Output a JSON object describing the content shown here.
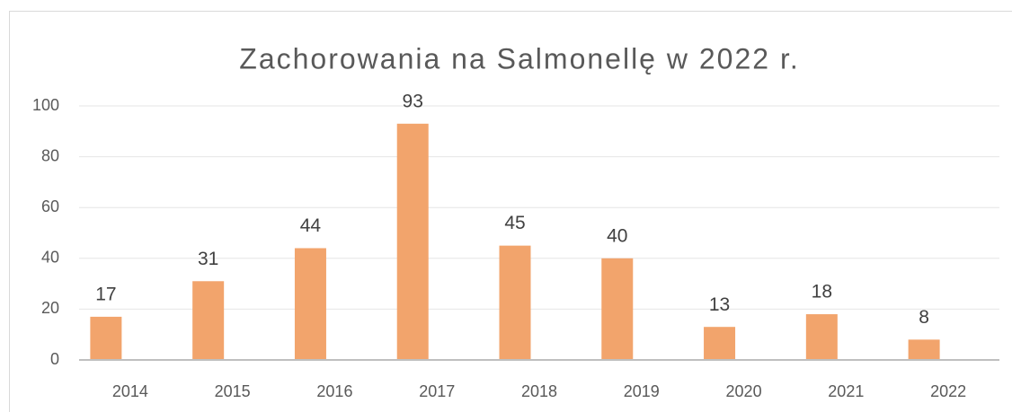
{
  "chart_data": {
    "type": "bar",
    "title": "Zachorowania na Salmonellę w 2022 r.",
    "categories": [
      "2014",
      "2015",
      "2016",
      "2017",
      "2018",
      "2019",
      "2020",
      "2021",
      "2022"
    ],
    "values": [
      17,
      31,
      44,
      93,
      45,
      40,
      13,
      18,
      8
    ],
    "color": "#f2a46c",
    "ylim": [
      0,
      100
    ],
    "yticks": [
      0,
      20,
      40,
      60,
      80,
      100
    ],
    "grid": true
  }
}
